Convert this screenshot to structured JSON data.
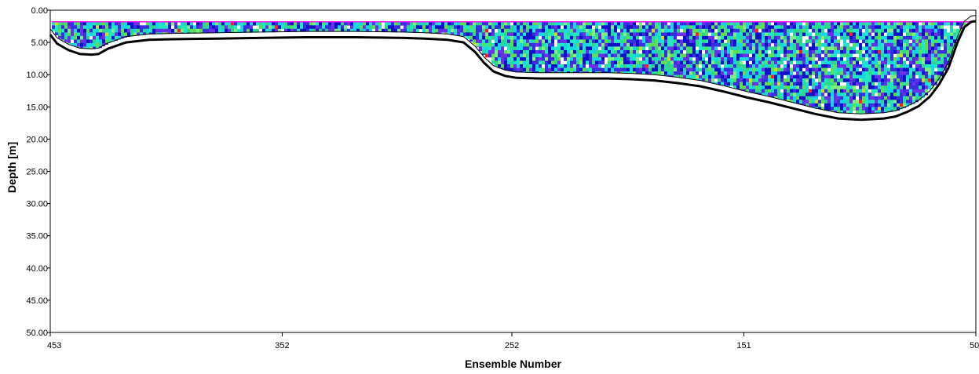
{
  "chart_data": {
    "type": "heatmap",
    "xlabel": "Ensemble Number",
    "ylabel": "Depth [m]",
    "xlim": [
      453,
      50
    ],
    "ylim": [
      0,
      50
    ],
    "x_ticks": [
      453,
      352,
      252,
      151,
      50
    ],
    "y_ticks": [
      "0.00",
      "5.00",
      "10.00",
      "15.00",
      "20.00",
      "25.00",
      "30.00",
      "35.00",
      "40.00",
      "45.00",
      "50.00"
    ],
    "grid": false,
    "surface_depth": 1.8,
    "bottom_profile": {
      "ensemble": [
        453,
        450,
        445,
        440,
        435,
        432,
        428,
        420,
        410,
        400,
        380,
        360,
        340,
        320,
        300,
        290,
        280,
        273,
        268,
        264,
        260,
        255,
        250,
        240,
        230,
        220,
        210,
        200,
        190,
        180,
        170,
        160,
        150,
        140,
        130,
        120,
        110,
        100,
        90,
        85,
        80,
        75,
        70,
        66,
        62,
        58,
        55,
        52,
        50
      ],
      "depth": [
        3.8,
        5.2,
        6.2,
        6.8,
        6.9,
        6.8,
        6.0,
        5.0,
        4.6,
        4.5,
        4.4,
        4.3,
        4.2,
        4.2,
        4.3,
        4.4,
        4.6,
        5.0,
        6.5,
        8.2,
        9.5,
        10.2,
        10.5,
        10.6,
        10.6,
        10.6,
        10.6,
        10.7,
        10.9,
        11.3,
        11.8,
        12.6,
        13.5,
        14.3,
        15.2,
        16.1,
        16.8,
        17.0,
        16.8,
        16.5,
        15.8,
        14.9,
        13.4,
        11.5,
        9.0,
        5.0,
        2.6,
        1.8,
        1.7
      ]
    },
    "colors": {
      "palette": [
        "#1010c8",
        "#3a2ee0",
        "#6a32e8",
        "#16d6e6",
        "#20e8c0",
        "#2cd890",
        "#5ce050",
        "#7ff07f",
        "#ffffff",
        "#ff2020",
        "#c8e020"
      ],
      "surface_line": "#ff00ff",
      "bottom_line": "#000000"
    }
  }
}
